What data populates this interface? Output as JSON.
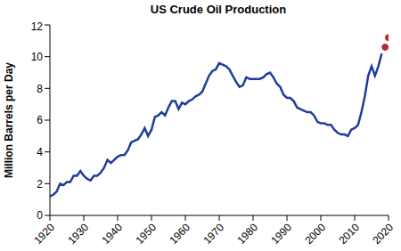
{
  "chart_data": {
    "type": "line",
    "title": "US Crude Oil Production",
    "y_label": "Million Barrels per Day",
    "x": [
      1920,
      1921,
      1922,
      1923,
      1924,
      1925,
      1926,
      1927,
      1928,
      1929,
      1930,
      1931,
      1932,
      1933,
      1934,
      1935,
      1936,
      1937,
      1938,
      1939,
      1940,
      1941,
      1942,
      1943,
      1944,
      1945,
      1946,
      1947,
      1948,
      1949,
      1950,
      1951,
      1952,
      1953,
      1954,
      1955,
      1956,
      1957,
      1958,
      1959,
      1960,
      1961,
      1962,
      1963,
      1964,
      1965,
      1966,
      1967,
      1968,
      1969,
      1970,
      1971,
      1972,
      1973,
      1974,
      1975,
      1976,
      1977,
      1978,
      1979,
      1980,
      1981,
      1982,
      1983,
      1984,
      1985,
      1986,
      1987,
      1988,
      1989,
      1990,
      1991,
      1992,
      1993,
      1994,
      1995,
      1996,
      1997,
      1998,
      1999,
      2000,
      2001,
      2002,
      2003,
      2004,
      2005,
      2006,
      2007,
      2008,
      2009,
      2010,
      2011,
      2012,
      2013,
      2014,
      2015,
      2016,
      2017,
      2018,
      2019,
      2020
    ],
    "series": [
      {
        "type": "line",
        "color": "#1f3d99",
        "line_style": "solid",
        "values": [
          1.2,
          1.3,
          1.5,
          2.0,
          1.9,
          2.1,
          2.1,
          2.5,
          2.5,
          2.8,
          2.5,
          2.3,
          2.2,
          2.5,
          2.5,
          2.7,
          3.0,
          3.5,
          3.3,
          3.5,
          3.7,
          3.8,
          3.8,
          4.1,
          4.6,
          4.7,
          4.8,
          5.1,
          5.5,
          5.0,
          5.4,
          6.2,
          6.3,
          6.5,
          6.3,
          6.8,
          7.2,
          7.2,
          6.7,
          7.1,
          7.0,
          7.2,
          7.3,
          7.5,
          7.6,
          7.8,
          8.3,
          8.8,
          9.1,
          9.2,
          9.6,
          9.5,
          9.4,
          9.2,
          8.8,
          8.4,
          8.1,
          8.2,
          8.7,
          8.6,
          8.6,
          8.6,
          8.6,
          8.7,
          8.9,
          9.0,
          8.7,
          8.3,
          8.1,
          7.6,
          7.4,
          7.4,
          7.2,
          6.8,
          6.7,
          6.6,
          6.5,
          6.5,
          6.3,
          5.9,
          5.8,
          5.8,
          5.7,
          5.7,
          5.4,
          5.2,
          5.1,
          5.1,
          5.0,
          5.4,
          5.5,
          5.7,
          6.5,
          7.5,
          8.8,
          9.4,
          8.8,
          9.4,
          10.2,
          null,
          null
        ]
      },
      {
        "type": "scatter",
        "color": "#c0282d",
        "marker": "circle",
        "values": [
          null,
          null,
          null,
          null,
          null,
          null,
          null,
          null,
          null,
          null,
          null,
          null,
          null,
          null,
          null,
          null,
          null,
          null,
          null,
          null,
          null,
          null,
          null,
          null,
          null,
          null,
          null,
          null,
          null,
          null,
          null,
          null,
          null,
          null,
          null,
          null,
          null,
          null,
          null,
          null,
          null,
          null,
          null,
          null,
          null,
          null,
          null,
          null,
          null,
          null,
          null,
          null,
          null,
          null,
          null,
          null,
          null,
          null,
          null,
          null,
          null,
          null,
          null,
          null,
          null,
          null,
          null,
          null,
          null,
          null,
          null,
          null,
          null,
          null,
          null,
          null,
          null,
          null,
          null,
          null,
          null,
          null,
          null,
          null,
          null,
          null,
          null,
          null,
          null,
          null,
          null,
          null,
          null,
          null,
          null,
          null,
          null,
          null,
          null,
          10.6,
          11.2
        ]
      }
    ],
    "xlim": [
      1920,
      2020
    ],
    "xticks": [
      1920,
      1930,
      1940,
      1950,
      1960,
      1970,
      1980,
      1990,
      2000,
      2010,
      2020
    ],
    "ylim": [
      0,
      12
    ],
    "yticks": [
      0,
      2,
      4,
      6,
      8,
      10,
      12
    ],
    "grid": false
  }
}
